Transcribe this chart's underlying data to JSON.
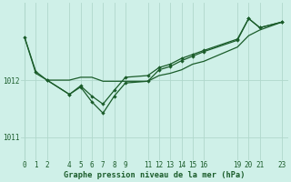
{
  "background_color": "#cff0e8",
  "grid_color": "#b0d8cc",
  "line_color": "#1a5c2a",
  "title": "Graphe pression niveau de la mer (hPa)",
  "ylabel_ticks": [
    1011,
    1012
  ],
  "x_ticks": [
    0,
    1,
    2,
    4,
    5,
    6,
    7,
    8,
    9,
    11,
    12,
    13,
    14,
    15,
    16,
    19,
    20,
    21,
    23
  ],
  "xlim": [
    -0.3,
    23.5
  ],
  "ylim": [
    1010.6,
    1013.35
  ],
  "series1_x": [
    0,
    1,
    2,
    4,
    5,
    6,
    7,
    8,
    9,
    11,
    12,
    13,
    14,
    15,
    16,
    19,
    20,
    21,
    23
  ],
  "series1_y": [
    1012.75,
    1012.15,
    1012.0,
    1011.75,
    1011.9,
    1011.72,
    1011.58,
    1011.82,
    1012.05,
    1012.08,
    1012.22,
    1012.28,
    1012.38,
    1012.45,
    1012.52,
    1012.72,
    1013.08,
    1012.92,
    1013.02
  ],
  "series2_x": [
    0,
    1,
    2,
    4,
    5,
    6,
    7,
    8,
    9,
    11,
    12,
    13,
    14,
    15,
    16,
    19,
    20,
    21,
    23
  ],
  "series2_y": [
    1012.75,
    1012.12,
    1012.0,
    1012.0,
    1012.05,
    1012.05,
    1011.98,
    1011.98,
    1011.98,
    1011.98,
    1012.08,
    1012.12,
    1012.18,
    1012.28,
    1012.33,
    1012.58,
    1012.78,
    1012.88,
    1013.02
  ],
  "series3_x": [
    2,
    4,
    5,
    6,
    7,
    8,
    9,
    11,
    12,
    13,
    14,
    15,
    16,
    19,
    20,
    21,
    23
  ],
  "series3_y": [
    1012.0,
    1011.75,
    1011.88,
    1011.62,
    1011.42,
    1011.72,
    1011.95,
    1011.98,
    1012.18,
    1012.24,
    1012.34,
    1012.42,
    1012.5,
    1012.7,
    1013.08,
    1012.92,
    1013.02
  ],
  "line_width": 0.9,
  "marker_size": 2.2,
  "tick_fontsize": 5.5,
  "xlabel_fontsize": 6.2
}
